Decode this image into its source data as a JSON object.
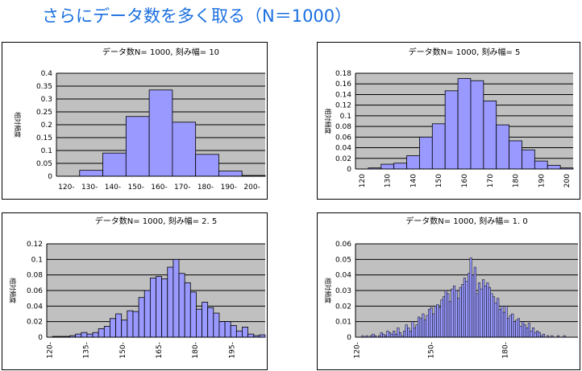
{
  "page": {
    "title": "さらにデータ数を多く取る（N＝1000）"
  },
  "colors": {
    "title": "#1a6fe0",
    "plot_bg": "#c0c0c0",
    "bar": "#9999ff",
    "bar_stroke": "#000000",
    "grid": "#000000"
  },
  "chart_data": [
    {
      "type": "bar",
      "title": "データ数N= 1000, 刻み幅= 10",
      "ylabel": "相対頻度",
      "ylim": [
        0,
        0.4
      ],
      "yticks": [
        "0",
        "0.05",
        "0.1",
        "0.15",
        "0.2",
        "0.25",
        "0.3",
        "0.35",
        "0.4"
      ],
      "categories": [
        "120-",
        "130-",
        "140-",
        "150-",
        "160-",
        "170-",
        "180-",
        "190-",
        "200-"
      ],
      "values": [
        0.0,
        0.023,
        0.09,
        0.232,
        0.335,
        0.21,
        0.085,
        0.02,
        0.003
      ],
      "tick_labels": [
        "120-",
        "130-",
        "140-",
        "150-",
        "160-",
        "170-",
        "180-",
        "190-",
        "200-"
      ],
      "grid": true
    },
    {
      "type": "bar",
      "title": "データ数N= 1000, 刻み幅= 5",
      "ylabel": "相対頻度",
      "ylim": [
        0,
        0.18
      ],
      "yticks": [
        "0",
        "0.02",
        "0.04",
        "0.06",
        "0.08",
        "0.1",
        "0.12",
        "0.14",
        "0.16",
        "0.18"
      ],
      "categories": [
        "120",
        "125",
        "130",
        "135",
        "140",
        "145",
        "150",
        "155",
        "160",
        "165",
        "170",
        "175",
        "180",
        "185",
        "190",
        "195",
        "200"
      ],
      "values": [
        0.0,
        0.002,
        0.009,
        0.011,
        0.025,
        0.06,
        0.085,
        0.147,
        0.17,
        0.166,
        0.128,
        0.083,
        0.053,
        0.036,
        0.015,
        0.007,
        0.002
      ],
      "tick_labels": [
        "120",
        "130",
        "140",
        "150",
        "160",
        "170",
        "180",
        "190",
        "200"
      ],
      "grid": true
    },
    {
      "type": "bar",
      "title": "データ数N= 1000, 刻み幅= 2. 5",
      "ylabel": "相対頻度",
      "ylim": [
        0,
        0.12
      ],
      "yticks": [
        "0",
        "0.02",
        "0.04",
        "0.06",
        "0.08",
        "0.1",
        "0.12"
      ],
      "values": [
        0.0,
        0.001,
        0.001,
        0.001,
        0.002,
        0.004,
        0.006,
        0.004,
        0.006,
        0.011,
        0.014,
        0.024,
        0.03,
        0.022,
        0.034,
        0.033,
        0.051,
        0.06,
        0.076,
        0.078,
        0.075,
        0.09,
        0.1,
        0.082,
        0.07,
        0.058,
        0.036,
        0.045,
        0.038,
        0.031,
        0.02,
        0.02,
        0.015,
        0.008,
        0.013,
        0.004,
        0.002,
        0.003
      ],
      "tick_labels": [
        "120-",
        "135-",
        "150-",
        "165-",
        "180-",
        "195-"
      ],
      "grid": true
    },
    {
      "type": "bar",
      "title": "データ数N= 1000, 刻み幅= 1. 0",
      "ylabel": "相対頻度",
      "ylim": [
        0,
        0.06
      ],
      "yticks": [
        "0",
        "0.01",
        "0.02",
        "0.03",
        "0.04",
        "0.05",
        "0.06"
      ],
      "values": [
        0.0,
        0.0,
        0.0,
        0.001,
        0.0,
        0.001,
        0.0,
        0.001,
        0.002,
        0.001,
        0.0,
        0.001,
        0.003,
        0.002,
        0.001,
        0.004,
        0.003,
        0.002,
        0.004,
        0.002,
        0.006,
        0.003,
        0.001,
        0.004,
        0.008,
        0.006,
        0.004,
        0.01,
        0.006,
        0.008,
        0.013,
        0.012,
        0.015,
        0.011,
        0.014,
        0.018,
        0.019,
        0.015,
        0.02,
        0.021,
        0.019,
        0.024,
        0.026,
        0.03,
        0.028,
        0.023,
        0.031,
        0.033,
        0.03,
        0.025,
        0.032,
        0.034,
        0.038,
        0.036,
        0.041,
        0.051,
        0.04,
        0.045,
        0.028,
        0.035,
        0.031,
        0.037,
        0.033,
        0.035,
        0.032,
        0.028,
        0.026,
        0.022,
        0.025,
        0.018,
        0.02,
        0.016,
        0.02,
        0.012,
        0.014,
        0.015,
        0.01,
        0.011,
        0.012,
        0.007,
        0.01,
        0.008,
        0.006,
        0.009,
        0.004,
        0.006,
        0.003,
        0.004,
        0.003,
        0.001,
        0.002,
        0.0,
        0.001,
        0.0,
        0.001,
        0.0,
        0.0,
        0.001,
        0.0,
        0.0,
        0.001,
        0.0,
        0.0,
        0.0,
        0.0,
        0.0,
        0.0
      ],
      "tick_labels": [
        "120-",
        "150-",
        "180-"
      ],
      "grid": true
    }
  ]
}
